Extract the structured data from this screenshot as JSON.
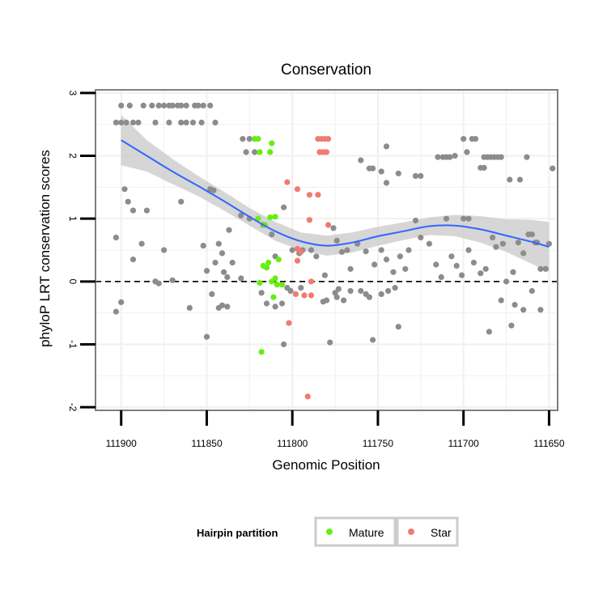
{
  "chart_data": {
    "type": "scatter",
    "title": "Conservation",
    "xlabel": "Genomic Position",
    "ylabel": "phyloP LRT conservation scores",
    "x_reversed": true,
    "xlim": [
      111915,
      111645
    ],
    "ylim": [
      -2.05,
      3.05
    ],
    "x_ticks": [
      111900,
      111850,
      111800,
      111750,
      111700,
      111650
    ],
    "x_tick_labels": [
      "111900",
      "111850",
      "111800",
      "111750",
      "111700",
      "111650"
    ],
    "y_ticks": [
      -2,
      -1,
      0,
      1,
      2,
      3
    ],
    "y_tick_labels": [
      "-2",
      "-1",
      "0",
      "1",
      "2",
      "3"
    ],
    "reference_line": {
      "y": 0,
      "style": "dashed"
    },
    "legend": {
      "title": "Hairpin partition",
      "position": "bottom",
      "entries": [
        {
          "label": "Mature",
          "color": "#66ee11"
        },
        {
          "label": "Star",
          "color": "#f07b70"
        }
      ]
    },
    "colors": {
      "other": "#8c8c8c",
      "mature": "#66ee11",
      "star": "#f07b70",
      "smooth": "#3366ff",
      "ribbon": "#c8c8c8"
    },
    "series": [
      {
        "name": "Other",
        "points": [
          [
            111900,
            2.8
          ],
          [
            111895,
            2.8
          ],
          [
            111887,
            2.8
          ],
          [
            111882,
            2.8
          ],
          [
            111878,
            2.8
          ],
          [
            111875,
            2.8
          ],
          [
            111872,
            2.8
          ],
          [
            111870,
            2.8
          ],
          [
            111867,
            2.8
          ],
          [
            111865,
            2.8
          ],
          [
            111862,
            2.8
          ],
          [
            111857,
            2.8
          ],
          [
            111855,
            2.8
          ],
          [
            111852,
            2.8
          ],
          [
            111848,
            2.8
          ],
          [
            111903,
            2.53
          ],
          [
            111900,
            2.53
          ],
          [
            111897,
            2.53
          ],
          [
            111893,
            2.53
          ],
          [
            111890,
            2.53
          ],
          [
            111880,
            2.53
          ],
          [
            111872,
            2.53
          ],
          [
            111865,
            2.53
          ],
          [
            111862,
            2.53
          ],
          [
            111858,
            2.53
          ],
          [
            111853,
            2.53
          ],
          [
            111845,
            2.53
          ],
          [
            111829,
            2.27
          ],
          [
            111825,
            2.27
          ],
          [
            111827,
            2.06
          ],
          [
            111822,
            2.06
          ],
          [
            111700,
            2.27
          ],
          [
            111695,
            2.27
          ],
          [
            111693,
            2.27
          ],
          [
            111698,
            2.06
          ],
          [
            111705,
            2.0
          ],
          [
            111715,
            1.98
          ],
          [
            111712,
            1.98
          ],
          [
            111710,
            1.98
          ],
          [
            111708,
            1.98
          ],
          [
            111688,
            1.98
          ],
          [
            111686,
            1.98
          ],
          [
            111684,
            1.98
          ],
          [
            111682,
            1.98
          ],
          [
            111680,
            1.98
          ],
          [
            111690,
            1.81
          ],
          [
            111688,
            1.81
          ],
          [
            111678,
            1.98
          ],
          [
            111663,
            1.98
          ],
          [
            111745,
            2.15
          ],
          [
            111760,
            1.93
          ],
          [
            111753,
            1.8
          ],
          [
            111755,
            1.8
          ],
          [
            111748,
            1.75
          ],
          [
            111745,
            1.57
          ],
          [
            111738,
            1.72
          ],
          [
            111728,
            1.68
          ],
          [
            111725,
            1.68
          ],
          [
            111648,
            1.8
          ],
          [
            111667,
            1.62
          ],
          [
            111673,
            1.62
          ],
          [
            111865,
            1.27
          ],
          [
            111848,
            1.47
          ],
          [
            111846,
            1.45
          ],
          [
            111898,
            1.47
          ],
          [
            111896,
            1.27
          ],
          [
            111893,
            1.13
          ],
          [
            111885,
            1.13
          ],
          [
            111700,
            1.0
          ],
          [
            111697,
            1.0
          ],
          [
            111903,
            0.7
          ],
          [
            111888,
            0.6
          ],
          [
            111875,
            0.5
          ],
          [
            111893,
            0.35
          ],
          [
            111830,
            1.05
          ],
          [
            111825,
            1.0
          ],
          [
            111817,
            0.9
          ],
          [
            111812,
            0.75
          ],
          [
            111805,
            1.18
          ],
          [
            111810,
            0.4
          ],
          [
            111800,
            0.5
          ],
          [
            111796,
            0.45
          ],
          [
            111794,
            0.5
          ],
          [
            111852,
            0.57
          ],
          [
            111843,
            0.6
          ],
          [
            111837,
            0.82
          ],
          [
            111841,
            0.45
          ],
          [
            111850,
            0.17
          ],
          [
            111845,
            0.3
          ],
          [
            111840,
            0.15
          ],
          [
            111838,
            0.07
          ],
          [
            111835,
            0.3
          ],
          [
            111830,
            0.05
          ],
          [
            111789,
            0.5
          ],
          [
            111786,
            0.4
          ],
          [
            111781,
            0.1
          ],
          [
            111776,
            0.85
          ],
          [
            111774,
            0.65
          ],
          [
            111771,
            0.47
          ],
          [
            111768,
            0.5
          ],
          [
            111766,
            0.2
          ],
          [
            111762,
            0.6
          ],
          [
            111757,
            0.48
          ],
          [
            111752,
            0.27
          ],
          [
            111748,
            0.5
          ],
          [
            111745,
            0.35
          ],
          [
            111741,
            0.15
          ],
          [
            111737,
            0.4
          ],
          [
            111732,
            0.5
          ],
          [
            111734,
            0.2
          ],
          [
            111728,
            0.97
          ],
          [
            111725,
            0.7
          ],
          [
            111720,
            0.6
          ],
          [
            111716,
            0.27
          ],
          [
            111713,
            0.07
          ],
          [
            111710,
            1.0
          ],
          [
            111707,
            0.4
          ],
          [
            111704,
            0.25
          ],
          [
            111701,
            0.1
          ],
          [
            111697,
            0.5
          ],
          [
            111694,
            0.3
          ],
          [
            111690,
            0.13
          ],
          [
            111687,
            0.2
          ],
          [
            111683,
            0.7
          ],
          [
            111681,
            0.55
          ],
          [
            111677,
            0.6
          ],
          [
            111675,
            0.0
          ],
          [
            111671,
            0.15
          ],
          [
            111668,
            0.62
          ],
          [
            111665,
            0.45
          ],
          [
            111662,
            0.75
          ],
          [
            111660,
            0.75
          ],
          [
            111658,
            0.62
          ],
          [
            111657,
            0.62
          ],
          [
            111655,
            0.2
          ],
          [
            111652,
            0.2
          ],
          [
            111650,
            0.6
          ],
          [
            111880,
            0.0
          ],
          [
            111878,
            -0.03
          ],
          [
            111870,
            0.02
          ],
          [
            111880,
            0.0
          ],
          [
            111860,
            -0.42
          ],
          [
            111847,
            -0.2
          ],
          [
            111843,
            -0.42
          ],
          [
            111841,
            -0.38
          ],
          [
            111838,
            -0.4
          ],
          [
            111818,
            -0.18
          ],
          [
            111815,
            -0.35
          ],
          [
            111810,
            -0.4
          ],
          [
            111806,
            -0.35
          ],
          [
            111803,
            -0.1
          ],
          [
            111801,
            -0.15
          ],
          [
            111795,
            -0.1
          ],
          [
            111782,
            -0.32
          ],
          [
            111774,
            -0.25
          ],
          [
            111770,
            -0.3
          ],
          [
            111766,
            -0.15
          ],
          [
            111760,
            -0.15
          ],
          [
            111757,
            -0.2
          ],
          [
            111755,
            -0.25
          ],
          [
            111780,
            -0.3
          ],
          [
            111775,
            -0.18
          ],
          [
            111773,
            -0.12
          ],
          [
            111748,
            -0.2
          ],
          [
            111744,
            -0.15
          ],
          [
            111740,
            -0.1
          ],
          [
            111678,
            -0.3
          ],
          [
            111670,
            -0.37
          ],
          [
            111665,
            -0.45
          ],
          [
            111660,
            -0.15
          ],
          [
            111655,
            -0.45
          ],
          [
            111903,
            -0.48
          ],
          [
            111900,
            -0.33
          ],
          [
            111850,
            -0.88
          ],
          [
            111805,
            -1.0
          ],
          [
            111778,
            -0.97
          ],
          [
            111753,
            -0.93
          ],
          [
            111738,
            -0.72
          ],
          [
            111685,
            -0.8
          ],
          [
            111672,
            -0.7
          ]
        ]
      },
      {
        "name": "Mature",
        "points": [
          [
            111822,
            2.27
          ],
          [
            111820,
            2.27
          ],
          [
            111819,
            2.06
          ],
          [
            111812,
            2.2
          ],
          [
            111813,
            2.06
          ],
          [
            111820,
            1.0
          ],
          [
            111813,
            1.02
          ],
          [
            111810,
            1.03
          ],
          [
            111816,
            0.9
          ],
          [
            111808,
            0.35
          ],
          [
            111817,
            0.25
          ],
          [
            111815,
            0.22
          ],
          [
            111814,
            0.3
          ],
          [
            111819,
            -0.02
          ],
          [
            111812,
            0.0
          ],
          [
            111810,
            0.05
          ],
          [
            111809,
            -0.05
          ],
          [
            111806,
            -0.05
          ],
          [
            111811,
            -0.25
          ],
          [
            111818,
            -1.12
          ]
        ]
      },
      {
        "name": "Star",
        "points": [
          [
            111785,
            2.27
          ],
          [
            111783,
            2.27
          ],
          [
            111781,
            2.27
          ],
          [
            111779,
            2.27
          ],
          [
            111784,
            2.06
          ],
          [
            111782,
            2.06
          ],
          [
            111780,
            2.06
          ],
          [
            111803,
            1.58
          ],
          [
            111797,
            1.47
          ],
          [
            111790,
            1.38
          ],
          [
            111785,
            1.38
          ],
          [
            111790,
            0.98
          ],
          [
            111779,
            0.9
          ],
          [
            111797,
            0.52
          ],
          [
            111795,
            0.47
          ],
          [
            111797,
            0.33
          ],
          [
            111798,
            -0.2
          ],
          [
            111793,
            -0.22
          ],
          [
            111789,
            -0.22
          ],
          [
            111802,
            -0.66
          ],
          [
            111789,
            0.0
          ],
          [
            111791,
            -1.83
          ]
        ]
      }
    ],
    "smooth": {
      "method": "loess",
      "x": [
        111900,
        111885,
        111870,
        111855,
        111840,
        111825,
        111810,
        111795,
        111780,
        111765,
        111750,
        111735,
        111720,
        111705,
        111690,
        111675,
        111660,
        111650
      ],
      "y": [
        2.25,
        2.0,
        1.75,
        1.52,
        1.28,
        1.03,
        0.8,
        0.64,
        0.57,
        0.62,
        0.72,
        0.8,
        0.88,
        0.89,
        0.83,
        0.73,
        0.63,
        0.55
      ],
      "upper": [
        2.65,
        2.25,
        1.95,
        1.68,
        1.43,
        1.17,
        0.95,
        0.78,
        0.73,
        0.78,
        0.87,
        0.94,
        1.02,
        1.06,
        1.04,
        0.99,
        0.98,
        0.95
      ],
      "lower": [
        1.85,
        1.75,
        1.55,
        1.36,
        1.13,
        0.89,
        0.65,
        0.5,
        0.41,
        0.46,
        0.57,
        0.66,
        0.74,
        0.72,
        0.62,
        0.47,
        0.28,
        0.15
      ]
    }
  }
}
